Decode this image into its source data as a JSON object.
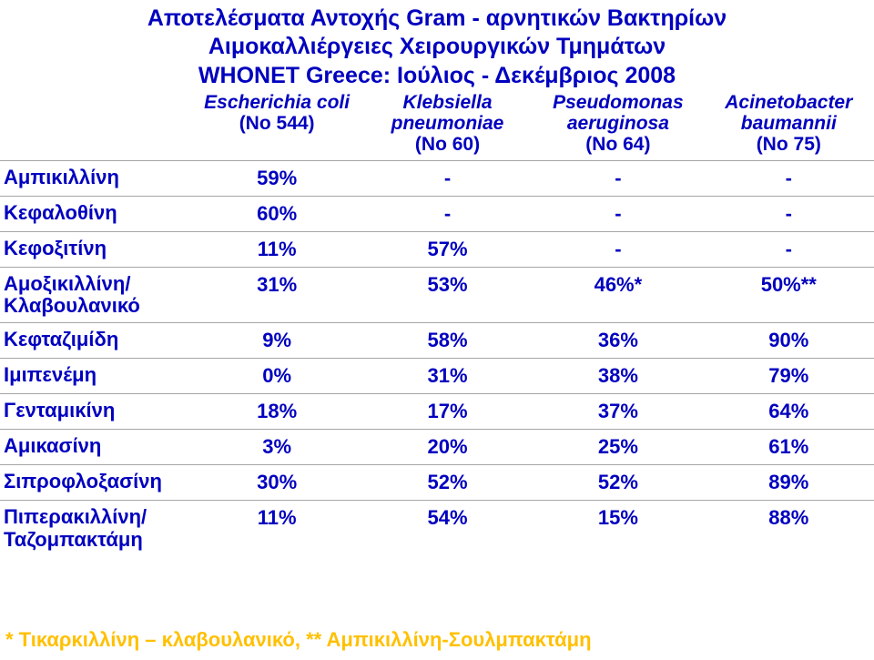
{
  "header": {
    "line1": "Αποτελέσματα Αντοχής Gram - αρνητικών Βακτηρίων",
    "line2": "Αιμοκαλλιέργειες Χειρουργικών Τμημάτων",
    "line3": "WHONET Greece: Ιούλιος - Δεκέμβριος 2008"
  },
  "columns": [
    {
      "name": "Escherichia coli",
      "sub": "(No 544)"
    },
    {
      "name": "Klebsiella pneumoniae",
      "sub": "(No 60)"
    },
    {
      "name": "Pseudomonas aeruginosa",
      "sub": "(No 64)"
    },
    {
      "name": "Acinetobacter baumannii",
      "sub": "(No 75)"
    }
  ],
  "rows": [
    {
      "label": "Αμπικιλλίνη",
      "v": [
        "59%",
        "-",
        "-",
        "-"
      ]
    },
    {
      "label": "Κεφαλοθίνη",
      "v": [
        "60%",
        "-",
        "-",
        "-"
      ]
    },
    {
      "label": "Κεφοξιτίνη",
      "v": [
        "11%",
        "57%",
        "-",
        "-"
      ]
    },
    {
      "label": "Αμοξικιλλίνη/ Κλαβουλανικό",
      "v": [
        "31%",
        "53%",
        "46%*",
        "50%**"
      ]
    },
    {
      "label": "Κεφταζιμίδη",
      "v": [
        "9%",
        "58%",
        "36%",
        "90%"
      ]
    },
    {
      "label": "Ιμιπενέμη",
      "v": [
        "0%",
        "31%",
        "38%",
        "79%"
      ]
    },
    {
      "label": "Γενταμικίνη",
      "v": [
        "18%",
        "17%",
        "37%",
        "64%"
      ]
    },
    {
      "label": "Αμικασίνη",
      "v": [
        "3%",
        "20%",
        "25%",
        "61%"
      ]
    },
    {
      "label": "Σιπροφλοξασίνη",
      "v": [
        "30%",
        "52%",
        "52%",
        "89%"
      ]
    },
    {
      "label": "Πιπερακιλλίνη/ Ταζομπακτάμη",
      "v": [
        "11%",
        "54%",
        "15%",
        "88%"
      ]
    }
  ],
  "footnote": "* Τικαρκιλλίνη – κλαβουλανικό, ** Αμπικιλλίνη-Σουλμπακτάμη",
  "style": {
    "title_color": "#0000bf",
    "cell_color": "#0000bf",
    "footnote_color": "#ffc000",
    "border_color": "#a6a6a6",
    "background_color": "#ffffff",
    "title_fontsize": 25,
    "colhead_fontsize": 21,
    "cell_fontsize": 22,
    "footnote_fontsize": 22
  }
}
